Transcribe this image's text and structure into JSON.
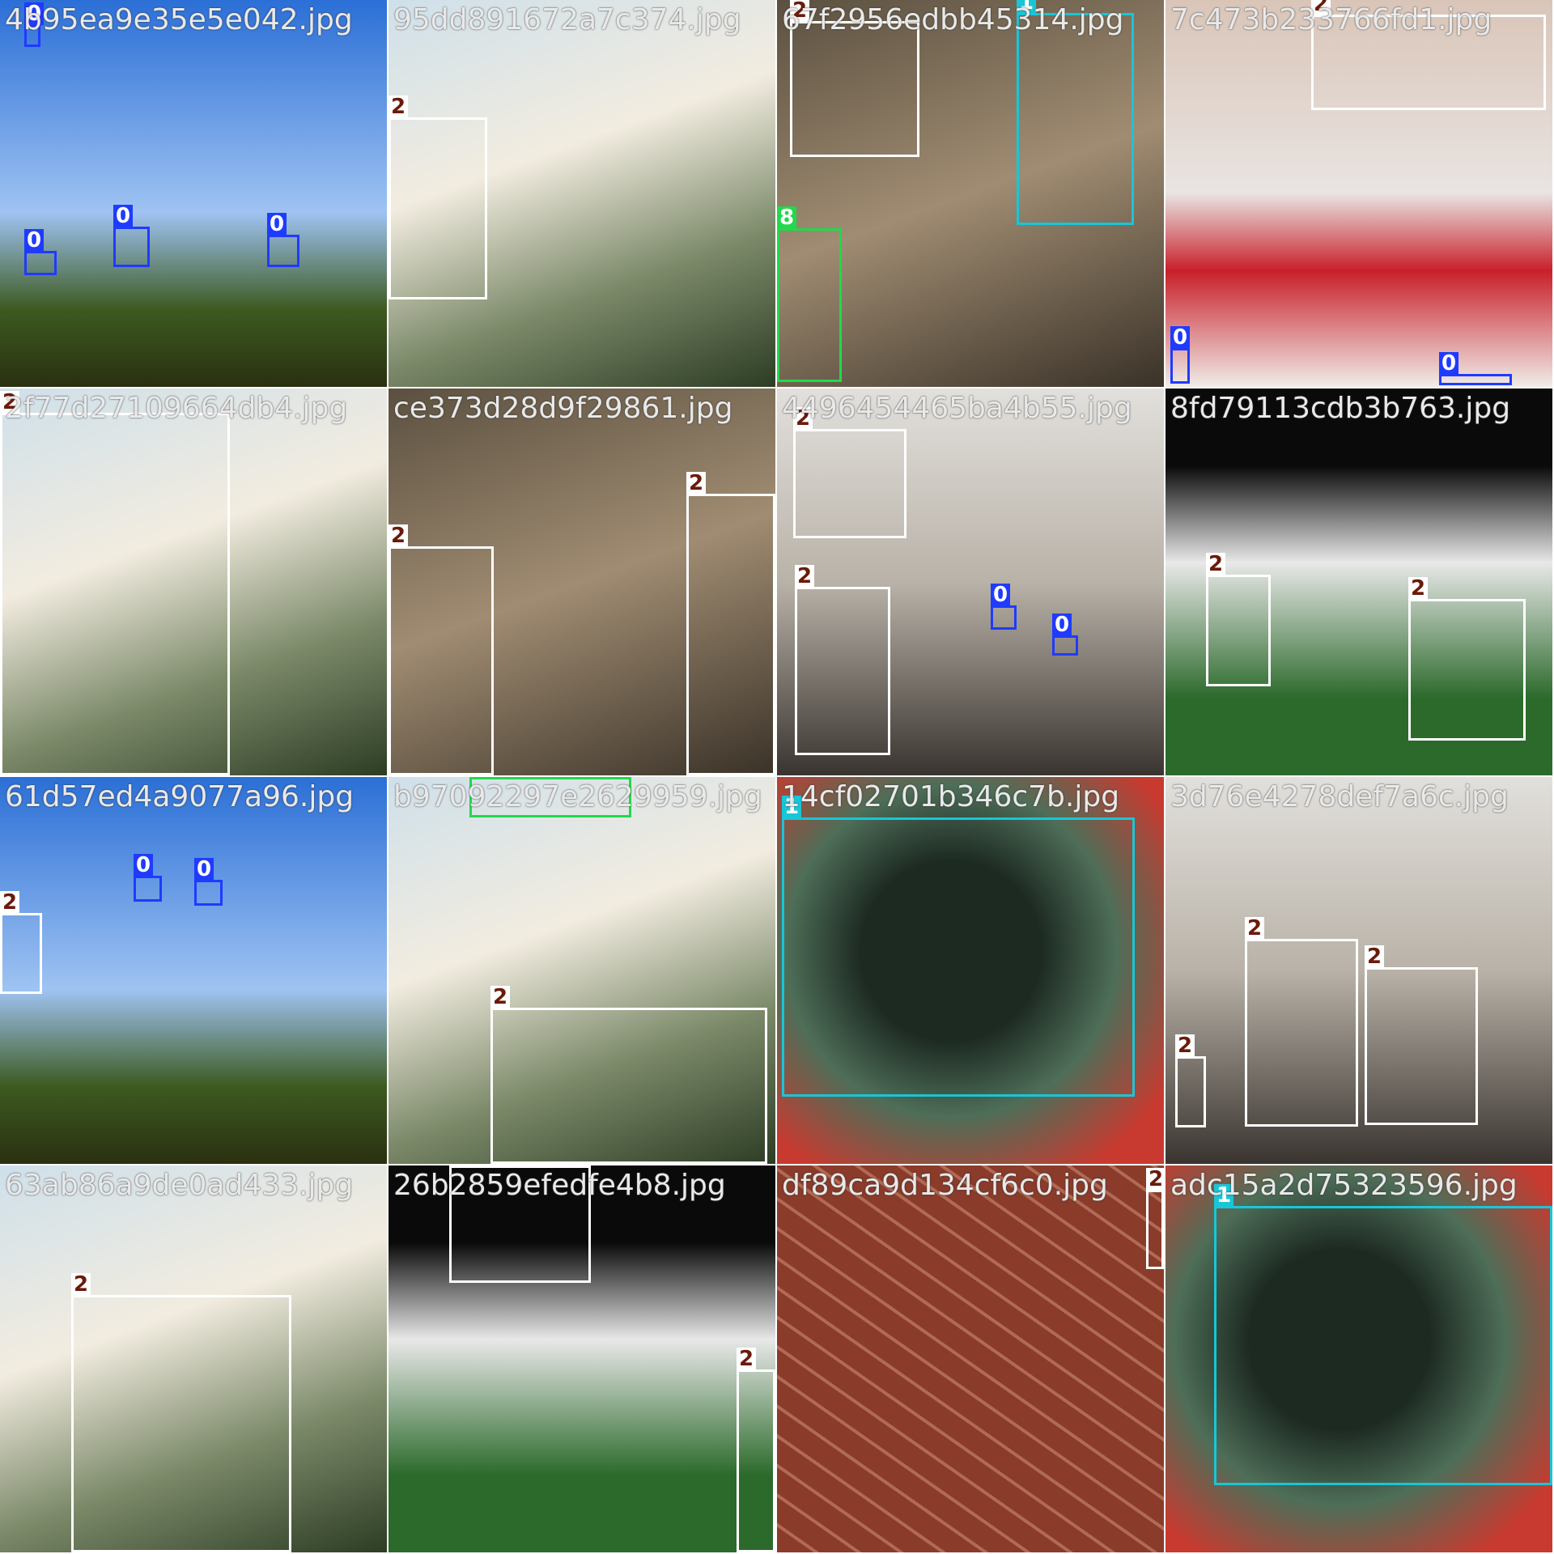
{
  "tiles": [
    {
      "title": "4b95ea9e35e5e042.jpg",
      "scene": "sky-strip"
    },
    {
      "title": "95dd891672a7c374.jpg",
      "scene": "person"
    },
    {
      "title": "67f2956edbb45314.jpg",
      "scene": "water"
    },
    {
      "title": "7c473b233766fd1.jpg",
      "scene": "cafe"
    },
    {
      "title": "2f77d27109664db4.jpg",
      "scene": "person"
    },
    {
      "title": "ce373d28d9f29861.jpg",
      "scene": "water"
    },
    {
      "title": "4496454465ba4b55.jpg",
      "scene": "indoor"
    },
    {
      "title": "8fd79113cdb3b763.jpg",
      "scene": "football"
    },
    {
      "title": "61d57ed4a9077a96.jpg",
      "scene": "sky-strip"
    },
    {
      "title": "b97092297e2629959.jpg",
      "scene": "person"
    },
    {
      "title": "14cf02701b346c7b.jpg",
      "scene": "car"
    },
    {
      "title": "3d76e4278def7a6c.jpg",
      "scene": "indoor"
    },
    {
      "title": "63ab86a9de0ad433.jpg",
      "scene": "person"
    },
    {
      "title": "26b2859efedfe4b8.jpg",
      "scene": "football"
    },
    {
      "title": "df89ca9d134cf6c0.jpg",
      "scene": "brick"
    },
    {
      "title": "adc15a2d75323596.jpg",
      "scene": "car"
    }
  ],
  "labels": {
    "person": "2",
    "bicycle_rider": "0",
    "car": "1",
    "dog": "8"
  },
  "colors": {
    "class_2": "#ffffff",
    "class_0": "#1f3bff",
    "class_1": "#18c6d8",
    "class_8": "#21d94b"
  }
}
